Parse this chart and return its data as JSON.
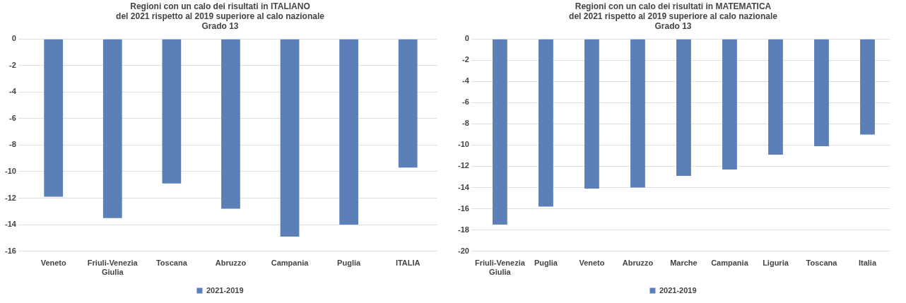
{
  "chart_data": [
    {
      "type": "bar",
      "title": "Regioni con un calo dei risultati in ITALIANO\ndel 2021 rispetto al 2019 superiore al calo nazionale\nGrado 13",
      "categories": [
        "Veneto",
        "Friuli-Venezia Giulia",
        "Toscana",
        "Abruzzo",
        "Campania",
        "Puglia",
        "ITALIA"
      ],
      "series": [
        {
          "name": "2021-2019",
          "color": "#5b7fb7",
          "values": [
            -11.9,
            -13.5,
            -10.9,
            -12.8,
            -14.9,
            -14.0,
            -9.7
          ]
        }
      ],
      "ylim": [
        -16,
        0
      ],
      "yticks": [
        -16,
        -14,
        -12,
        -10,
        -8,
        -6,
        -4,
        -2,
        0
      ],
      "grid": "y",
      "legend": "bottom"
    },
    {
      "type": "bar",
      "title": "Regioni con un calo dei risultati in MATEMATICA\ndel 2021 rispetto al 2019 superiore al calo nazionale\nGrado 13",
      "categories": [
        "Friuli-Venezia Giulia",
        "Puglia",
        "Veneto",
        "Abruzzo",
        "Marche",
        "Campania",
        "Liguria",
        "Toscana",
        "Italia"
      ],
      "series": [
        {
          "name": "2021-2019",
          "color": "#5b7fb7",
          "values": [
            -17.5,
            -15.8,
            -14.1,
            -14.0,
            -12.9,
            -12.3,
            -10.9,
            -10.1,
            -9.0
          ]
        }
      ],
      "ylim": [
        -20,
        0
      ],
      "yticks": [
        -20,
        -18,
        -16,
        -14,
        -12,
        -10,
        -8,
        -6,
        -4,
        -2,
        0
      ],
      "grid": "y",
      "legend": "bottom"
    }
  ]
}
